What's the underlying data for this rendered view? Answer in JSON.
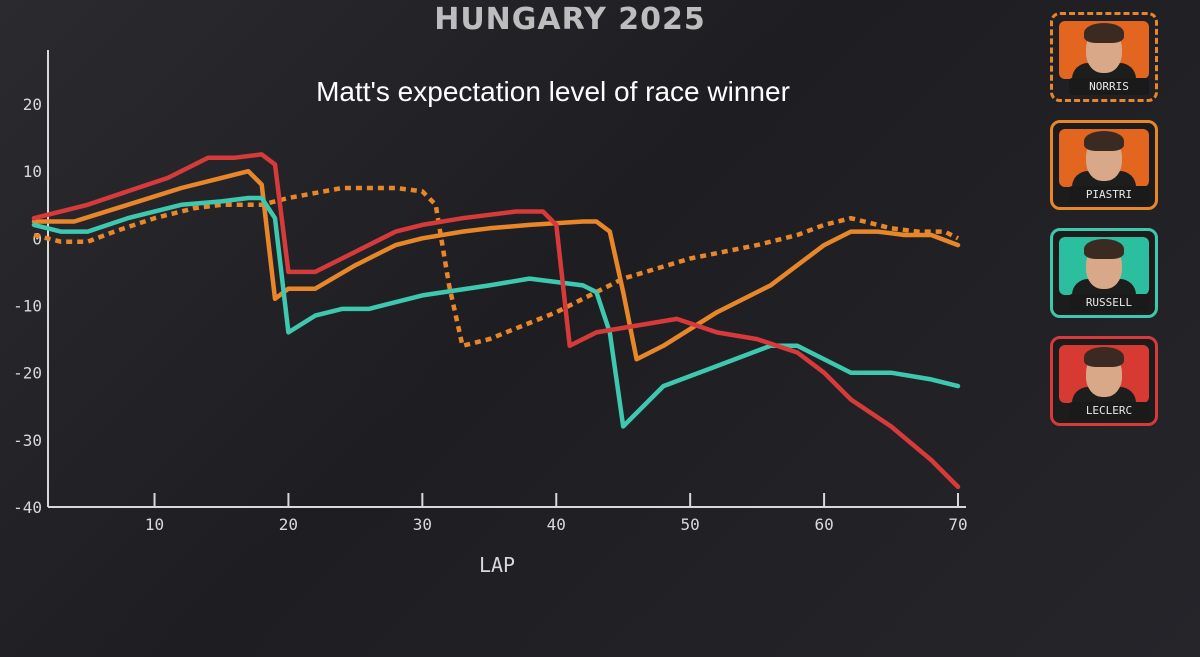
{
  "header": {
    "title": "HUNGARY 2025",
    "subtitle": "Matt's expectation level of race winner"
  },
  "drivers": [
    {
      "name": "NORRIS",
      "color": "#e8862a",
      "bg": "#e2661f",
      "dashed": true,
      "icon": "norris-portrait"
    },
    {
      "name": "PIASTRI",
      "color": "#e8862a",
      "bg": "#e2661f",
      "dashed": false,
      "icon": "piastri-portrait"
    },
    {
      "name": "RUSSELL",
      "color": "#3ec8b0",
      "bg": "#2bbf9f",
      "dashed": false,
      "icon": "russell-portrait"
    },
    {
      "name": "LECLERC",
      "color": "#d63a3a",
      "bg": "#d63a32",
      "dashed": false,
      "icon": "leclerc-portrait"
    }
  ],
  "chart_data": {
    "type": "line",
    "xlabel": "LAP",
    "ylabel": "",
    "xlim": [
      1,
      70
    ],
    "ylim": [
      -40,
      25
    ],
    "xticks": [
      10,
      20,
      30,
      40,
      50,
      60,
      70
    ],
    "yticks": [
      20,
      10,
      0,
      -10,
      -20,
      -30,
      -40
    ],
    "series": [
      {
        "name": "NORRIS",
        "color": "#e8862a",
        "dash": true,
        "points": [
          [
            1,
            0.5
          ],
          [
            3,
            -0.5
          ],
          [
            5,
            -0.5
          ],
          [
            7,
            1
          ],
          [
            10,
            3
          ],
          [
            13,
            4.5
          ],
          [
            15,
            5
          ],
          [
            18,
            5
          ],
          [
            20,
            6
          ],
          [
            24,
            7.5
          ],
          [
            28,
            7.5
          ],
          [
            30,
            7
          ],
          [
            31,
            5
          ],
          [
            32,
            -7
          ],
          [
            33,
            -16
          ],
          [
            35,
            -15
          ],
          [
            40,
            -11
          ],
          [
            45,
            -6
          ],
          [
            50,
            -3
          ],
          [
            55,
            -1
          ],
          [
            58,
            0.5
          ],
          [
            60,
            2
          ],
          [
            62,
            3
          ],
          [
            63,
            2.5
          ],
          [
            65,
            1.5
          ],
          [
            67,
            1
          ],
          [
            69,
            1
          ],
          [
            70,
            0
          ]
        ]
      },
      {
        "name": "PIASTRI",
        "color": "#e8862a",
        "dash": false,
        "points": [
          [
            1,
            2.5
          ],
          [
            4,
            2.5
          ],
          [
            8,
            5
          ],
          [
            12,
            7.5
          ],
          [
            15,
            9
          ],
          [
            17,
            10
          ],
          [
            18,
            8
          ],
          [
            19,
            -9
          ],
          [
            20,
            -7.5
          ],
          [
            22,
            -7.5
          ],
          [
            25,
            -4
          ],
          [
            28,
            -1
          ],
          [
            30,
            0
          ],
          [
            33,
            1
          ],
          [
            35,
            1.5
          ],
          [
            38,
            2
          ],
          [
            42,
            2.5
          ],
          [
            43,
            2.5
          ],
          [
            44,
            1
          ],
          [
            45,
            -8
          ],
          [
            46,
            -18
          ],
          [
            48,
            -16
          ],
          [
            52,
            -11
          ],
          [
            56,
            -7
          ],
          [
            60,
            -1
          ],
          [
            62,
            1
          ],
          [
            64,
            1
          ],
          [
            66,
            0.5
          ],
          [
            68,
            0.5
          ],
          [
            70,
            -1
          ]
        ]
      },
      {
        "name": "RUSSELL",
        "color": "#3ec8b0",
        "dash": false,
        "points": [
          [
            1,
            2
          ],
          [
            3,
            1
          ],
          [
            5,
            1
          ],
          [
            8,
            3
          ],
          [
            12,
            5
          ],
          [
            15,
            5.5
          ],
          [
            17,
            6
          ],
          [
            18,
            6
          ],
          [
            19,
            3
          ],
          [
            20,
            -14
          ],
          [
            22,
            -11.5
          ],
          [
            24,
            -10.5
          ],
          [
            26,
            -10.5
          ],
          [
            30,
            -8.5
          ],
          [
            35,
            -7
          ],
          [
            38,
            -6
          ],
          [
            42,
            -7
          ],
          [
            43,
            -8
          ],
          [
            44,
            -14
          ],
          [
            45,
            -28
          ],
          [
            48,
            -22
          ],
          [
            52,
            -19
          ],
          [
            56,
            -16
          ],
          [
            58,
            -16
          ],
          [
            60,
            -18
          ],
          [
            62,
            -20
          ],
          [
            65,
            -20
          ],
          [
            68,
            -21
          ],
          [
            70,
            -22
          ]
        ]
      },
      {
        "name": "LECLERC",
        "color": "#d63a3a",
        "dash": false,
        "points": [
          [
            1,
            3
          ],
          [
            5,
            5
          ],
          [
            8,
            7
          ],
          [
            11,
            9
          ],
          [
            14,
            12
          ],
          [
            16,
            12
          ],
          [
            18,
            12.5
          ],
          [
            19,
            11
          ],
          [
            20,
            -5
          ],
          [
            22,
            -5
          ],
          [
            25,
            -2
          ],
          [
            28,
            1
          ],
          [
            30,
            2
          ],
          [
            33,
            3
          ],
          [
            37,
            4
          ],
          [
            39,
            4
          ],
          [
            40,
            2
          ],
          [
            41,
            -16
          ],
          [
            43,
            -14
          ],
          [
            46,
            -13
          ],
          [
            49,
            -12
          ],
          [
            52,
            -14
          ],
          [
            55,
            -15
          ],
          [
            58,
            -17
          ],
          [
            60,
            -20
          ],
          [
            62,
            -24
          ],
          [
            65,
            -28
          ],
          [
            68,
            -33
          ],
          [
            70,
            -37
          ]
        ]
      }
    ]
  }
}
